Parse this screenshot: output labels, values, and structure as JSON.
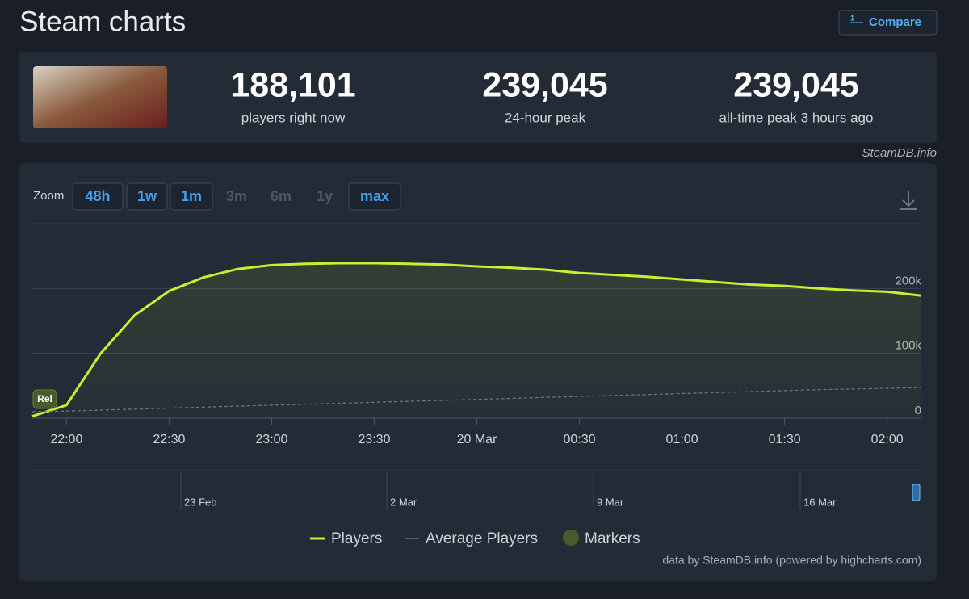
{
  "header": {
    "title": "Steam charts",
    "compare": "Compare"
  },
  "stats": [
    {
      "value": "188,101",
      "label": "players right now"
    },
    {
      "value": "239,045",
      "label": "24-hour peak"
    },
    {
      "value": "239,045",
      "label": "all-time peak 3 hours ago"
    }
  ],
  "source": "SteamDB.info",
  "zoom": {
    "label": "Zoom",
    "options": [
      "48h",
      "1w",
      "1m",
      "3m",
      "6m",
      "1y",
      "max"
    ],
    "enabled": [
      true,
      true,
      true,
      false,
      false,
      false,
      true
    ]
  },
  "chart_data": {
    "type": "line",
    "x": [
      "21:50",
      "22:00",
      "22:10",
      "22:20",
      "22:30",
      "22:40",
      "22:50",
      "23:00",
      "23:10",
      "23:20",
      "23:30",
      "23:40",
      "23:50",
      "00:00",
      "00:10",
      "00:20",
      "00:30",
      "00:40",
      "00:50",
      "01:00",
      "01:10",
      "01:20",
      "01:30",
      "01:40",
      "01:50",
      "02:00",
      "02:10"
    ],
    "series": [
      {
        "name": "Players",
        "color": "#c4f230",
        "values": [
          3000,
          20000,
          100000,
          159000,
          196000,
          217000,
          230000,
          236000,
          238000,
          239000,
          239000,
          238000,
          237000,
          234000,
          232000,
          229000,
          224000,
          221000,
          218000,
          214000,
          210000,
          206000,
          204000,
          200000,
          197000,
          195000,
          189000
        ]
      },
      {
        "name": "Average Players",
        "color": "#6e7884",
        "values": [
          10000,
          11000,
          12500,
          14000,
          15500,
          17000,
          18500,
          20000,
          21500,
          23000,
          24500,
          26000,
          27500,
          29000,
          30500,
          32000,
          33500,
          35000,
          36500,
          38000,
          39500,
          41000,
          42500,
          44000,
          45000,
          46000,
          47000
        ]
      }
    ],
    "xticks": [
      "22:00",
      "22:30",
      "23:00",
      "23:30",
      {
        "value": "00:00",
        "label": "20 Mar"
      },
      "00:30",
      "01:00",
      "01:30",
      "02:00"
    ],
    "ylim": [
      0,
      300000
    ],
    "yticks": [
      {
        "value": 0,
        "label": "0"
      },
      {
        "value": 100000,
        "label": "100k"
      },
      {
        "value": 200000,
        "label": "200k"
      }
    ],
    "grid": true,
    "markers": [
      {
        "x": "21:50",
        "label": "Rel"
      }
    ],
    "markers_legend": {
      "name": "Markers",
      "color": "#4a5a2a"
    },
    "navigator_ticks": [
      "23 Feb",
      "2 Mar",
      "9 Mar",
      "16 Mar"
    ],
    "credits": "data by SteamDB.info (powered by highcharts.com)"
  }
}
